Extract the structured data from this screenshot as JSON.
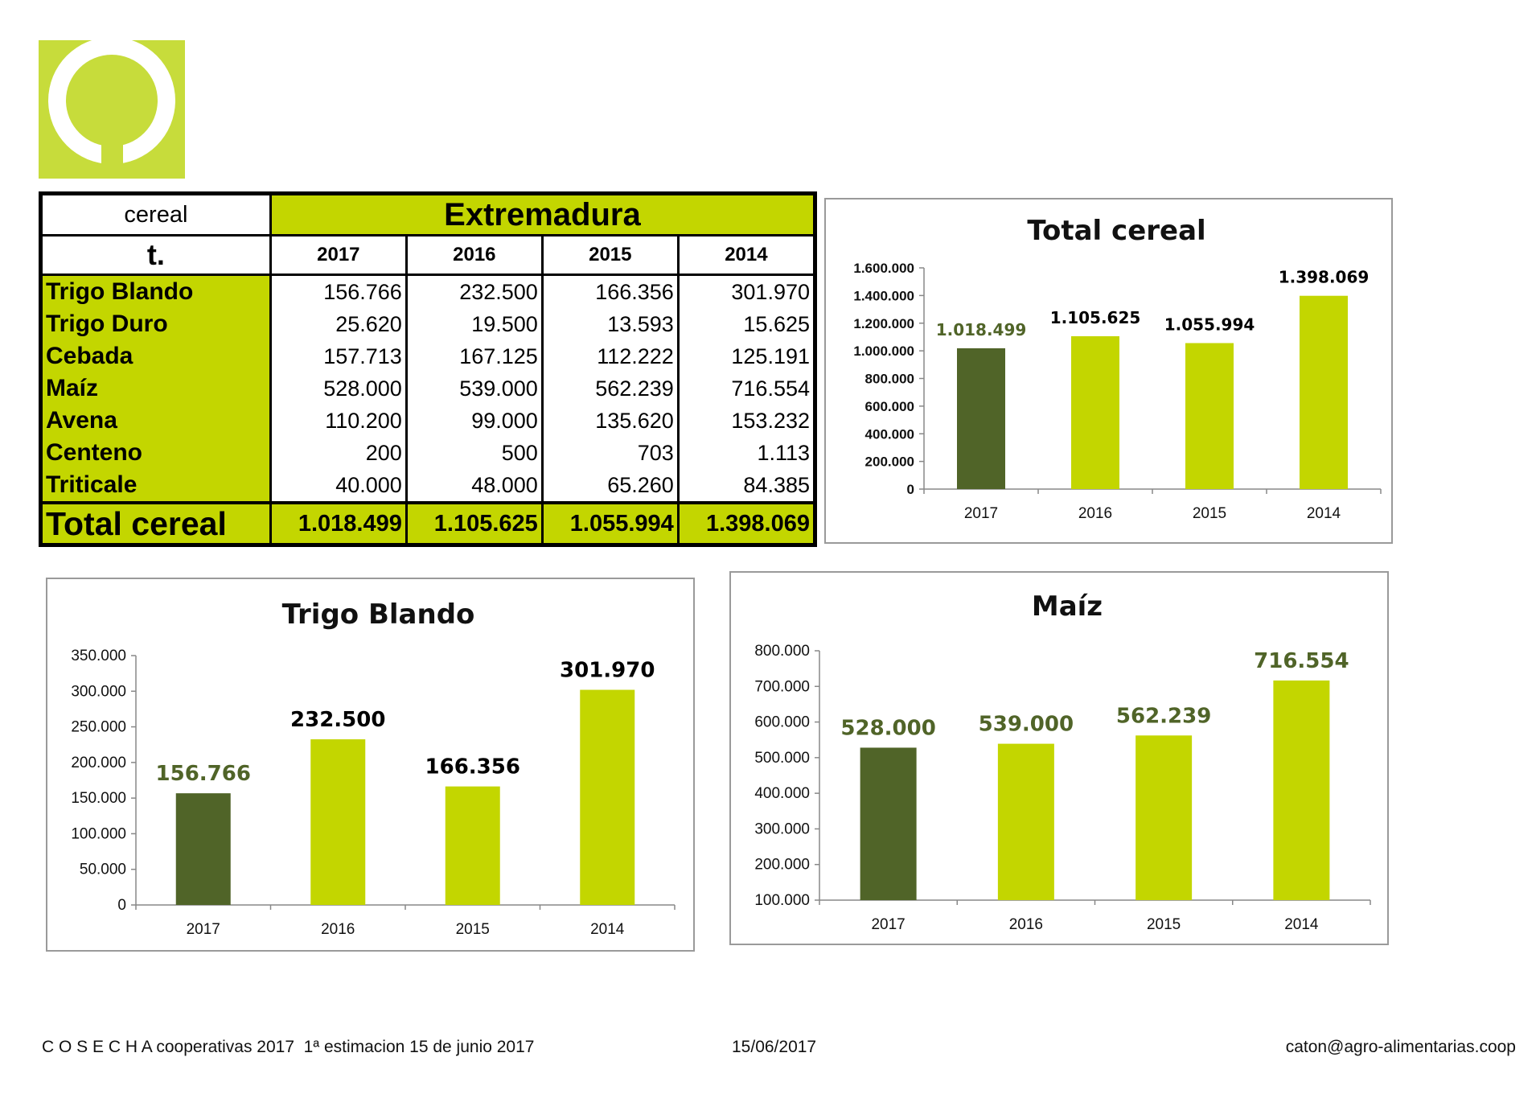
{
  "colors": {
    "accent": "#c3d600",
    "logo_green": "#c7dc3b",
    "dark_green": "#506428",
    "bar_light": "#c3d600"
  },
  "table": {
    "header_label": "cereal",
    "region": "Extremadura",
    "unit": "t.",
    "years": [
      "2017",
      "2016",
      "2015",
      "2014"
    ],
    "rows": [
      {
        "crop": "Trigo Blando",
        "values": [
          "156.766",
          "232.500",
          "166.356",
          "301.970"
        ]
      },
      {
        "crop": "Trigo Duro",
        "values": [
          "25.620",
          "19.500",
          "13.593",
          "15.625"
        ]
      },
      {
        "crop": "Cebada",
        "values": [
          "157.713",
          "167.125",
          "112.222",
          "125.191"
        ]
      },
      {
        "crop": "Maíz",
        "values": [
          "528.000",
          "539.000",
          "562.239",
          "716.554"
        ]
      },
      {
        "crop": "Avena",
        "values": [
          "110.200",
          "99.000",
          "135.620",
          "153.232"
        ]
      },
      {
        "crop": "Centeno",
        "values": [
          "200",
          "500",
          "703",
          "1.113"
        ]
      },
      {
        "crop": "Triticale",
        "values": [
          "40.000",
          "48.000",
          "65.260",
          "84.385"
        ]
      }
    ],
    "total": {
      "crop": "Total cereal",
      "values": [
        "1.018.499",
        "1.105.625",
        "1.055.994",
        "1.398.069"
      ]
    }
  },
  "chart_data": [
    {
      "id": "total",
      "type": "bar",
      "title": "Total cereal",
      "categories": [
        "2017",
        "2016",
        "2015",
        "2014"
      ],
      "values": [
        1018499,
        1105625,
        1055994,
        1398069
      ],
      "data_labels": [
        "1.018.499",
        "1.105.625",
        "1.055.994",
        "1.398.069"
      ],
      "ylim": [
        0,
        1600000
      ],
      "yticks": [
        0,
        200000,
        400000,
        600000,
        800000,
        1000000,
        1200000,
        1400000,
        1600000
      ],
      "ytick_labels": [
        "0",
        "200.000",
        "400.000",
        "600.000",
        "800.000",
        "1.000.000",
        "1.200.000",
        "1.400.000",
        "1.600.000"
      ],
      "bar_colors": [
        "#506428",
        "#c3d600",
        "#c3d600",
        "#c3d600"
      ],
      "label_colors": [
        "#506428",
        "#000000",
        "#000000",
        "#000000"
      ],
      "xlabel": "",
      "ylabel": "",
      "grid": false
    },
    {
      "id": "trigo",
      "type": "bar",
      "title": "Trigo Blando",
      "categories": [
        "2017",
        "2016",
        "2015",
        "2014"
      ],
      "values": [
        156766,
        232500,
        166356,
        301970
      ],
      "data_labels": [
        "156.766",
        "232.500",
        "166.356",
        "301.970"
      ],
      "ylim": [
        0,
        350000
      ],
      "yticks": [
        0,
        50000,
        100000,
        150000,
        200000,
        250000,
        300000,
        350000
      ],
      "ytick_labels": [
        "0",
        "50.000",
        "100.000",
        "150.000",
        "200.000",
        "250.000",
        "300.000",
        "350.000"
      ],
      "bar_colors": [
        "#506428",
        "#c3d600",
        "#c3d600",
        "#c3d600"
      ],
      "label_colors": [
        "#506428",
        "#000000",
        "#000000",
        "#000000"
      ],
      "xlabel": "",
      "ylabel": "",
      "grid": false
    },
    {
      "id": "maiz",
      "type": "bar",
      "title": "Maíz",
      "categories": [
        "2017",
        "2016",
        "2015",
        "2014"
      ],
      "values": [
        528000,
        539000,
        562239,
        716554
      ],
      "data_labels": [
        "528.000",
        "539.000",
        "562.239",
        "716.554"
      ],
      "ylim": [
        100000,
        800000
      ],
      "yticks": [
        100000,
        200000,
        300000,
        400000,
        500000,
        600000,
        700000,
        800000
      ],
      "ytick_labels": [
        "100.000",
        "200.000",
        "300.000",
        "400.000",
        "500.000",
        "600.000",
        "700.000",
        "800.000"
      ],
      "bar_colors": [
        "#506428",
        "#c3d600",
        "#c3d600",
        "#c3d600"
      ],
      "label_colors": [
        "#506428",
        "#506428",
        "#506428",
        "#506428"
      ],
      "xlabel": "",
      "ylabel": "",
      "grid": false
    }
  ],
  "footer": {
    "left": "C O S E C H A cooperativas 2017  1ª estimacion 15 de junio 2017",
    "date": "15/06/2017",
    "email": "caton@agro-alimentarias.coop"
  }
}
